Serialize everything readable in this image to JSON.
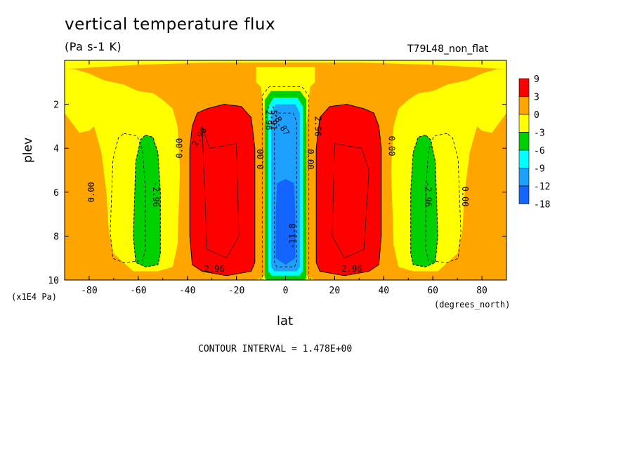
{
  "header": {
    "title": "vertical temperature flux",
    "units": "(Pa s-1 K)",
    "run_id": "T79L48_non_flat",
    "contour_interval": "CONTOUR INTERVAL = 1.478E+00"
  },
  "chart_data": {
    "type": "heatmap",
    "title": "vertical temperature flux",
    "subtitle": "(Pa s-1 K)",
    "annotation": "T79L48_non_flat",
    "xlabel": "lat",
    "x_unit": "(degrees_north)",
    "ylabel": "plev",
    "y_unit": "(x1E4 Pa)",
    "xlim": [
      -90,
      90
    ],
    "ylim": [
      0,
      10
    ],
    "y_inverted": true,
    "x_ticks": [
      -80,
      -60,
      -40,
      -20,
      0,
      20,
      40,
      60,
      80
    ],
    "y_ticks": [
      2,
      4,
      6,
      8,
      10
    ],
    "colorbar": {
      "labels": [
        "9",
        "3",
        "0",
        "-3",
        "-6",
        "-9",
        "-12",
        "-18"
      ],
      "colors": [
        "#ff0000",
        "#ffa500",
        "#ffff00",
        "#00d000",
        "#00ffff",
        "#1ea0ff",
        "#1464ff"
      ]
    },
    "contour_labels": [
      "0.00",
      "2.96",
      "-2.96",
      "-5.91",
      "-8.87",
      "-11.8"
    ],
    "regions": [
      {
        "name": "SH subtropical upward flux max",
        "lat": [
          -42,
          -10
        ],
        "plev": [
          2,
          9.8
        ],
        "value": 9
      },
      {
        "name": "NH subtropical upward flux max",
        "lat": [
          10,
          42
        ],
        "plev": [
          2,
          9.8
        ],
        "value": 9
      },
      {
        "name": "equatorial minimum",
        "lat": [
          -8,
          8
        ],
        "plev": [
          1.4,
          10
        ],
        "value": -18
      },
      {
        "name": "SH midlatitude minimum",
        "lat": [
          -62,
          -50
        ],
        "plev": [
          3.4,
          9.4
        ],
        "value": -6
      },
      {
        "name": "NH midlatitude minimum",
        "lat": [
          48,
          62
        ],
        "plev": [
          3.4,
          9.4
        ],
        "value": -6
      }
    ]
  }
}
